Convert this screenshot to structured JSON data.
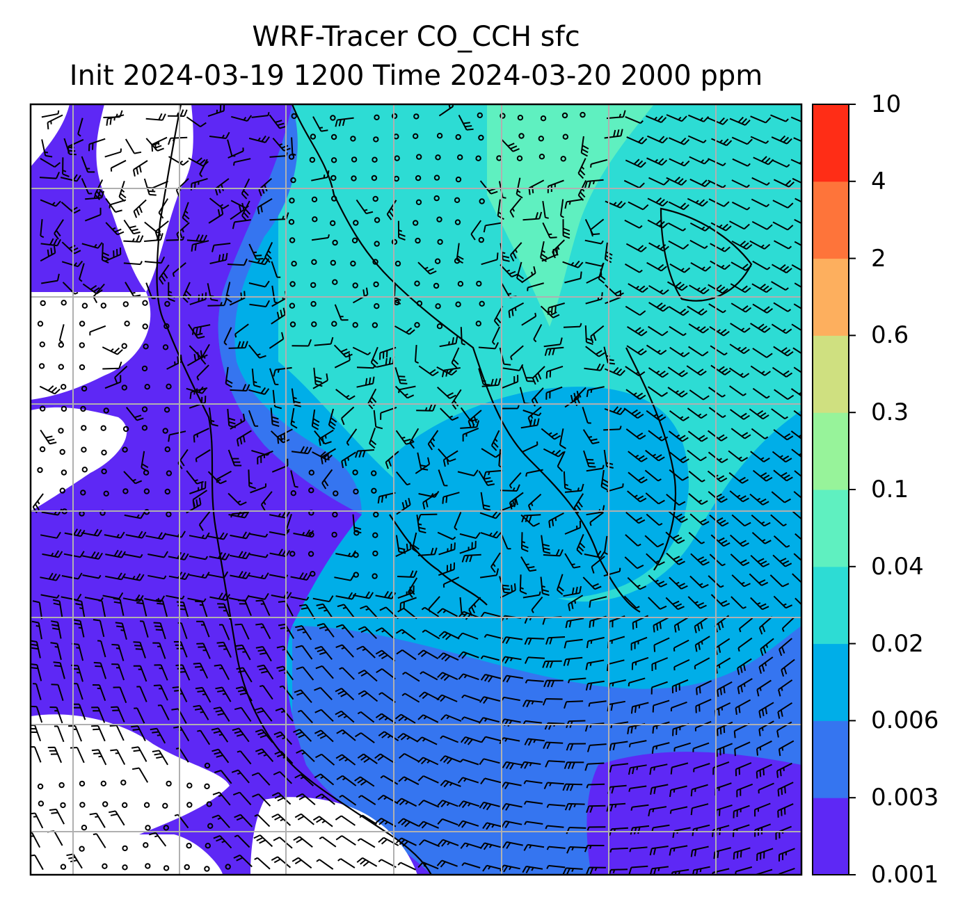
{
  "title": {
    "line1": "WRF-Tracer CO_CCH sfc",
    "line2": "Init 2024-03-19 1200 Time 2024-03-20 2000 ppm"
  },
  "colorbar": {
    "labels": [
      "0.001",
      "0.003",
      "0.006",
      "0.02",
      "0.04",
      "0.1",
      "0.3",
      "0.6",
      "2",
      "4",
      "10"
    ],
    "colors": [
      "#5e28f5",
      "#3575f0",
      "#00aee8",
      "#2ddcd4",
      "#5ff0c0",
      "#97f39a",
      "#cfe080",
      "#fdaf5e",
      "#fe743a",
      "#ff2d16"
    ]
  },
  "map": {
    "background_color": "#ffffff",
    "gridline_color": "#b0b0b0",
    "barb_color": "#000000"
  }
}
